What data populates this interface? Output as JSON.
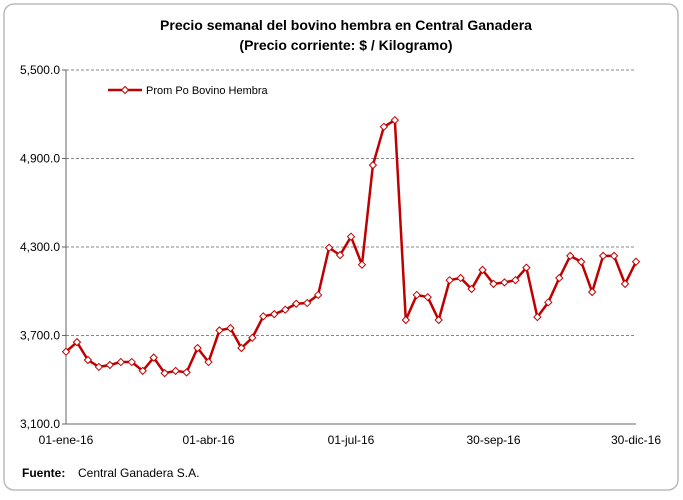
{
  "chart_data": {
    "type": "line",
    "title": "Precio semanal del bovino  hembra en Central Ganadera",
    "subtitle": "(Precio corriente: $ / Kilogramo)",
    "categories": [
      "01-ene-16",
      null,
      null,
      null,
      null,
      null,
      null,
      null,
      null,
      null,
      null,
      null,
      null,
      "01-abr-16",
      null,
      null,
      null,
      null,
      null,
      null,
      null,
      null,
      null,
      null,
      null,
      null,
      "01-jul-16",
      null,
      null,
      null,
      null,
      null,
      null,
      null,
      null,
      null,
      null,
      null,
      null,
      "30-sep-16",
      null,
      null,
      null,
      null,
      null,
      null,
      null,
      null,
      null,
      null,
      null,
      null,
      "30-dic-16"
    ],
    "series": [
      {
        "name": "Prom Po Bovino Hembra",
        "color": "#c00000",
        "values": [
          3590,
          3655,
          3534,
          3487,
          3500,
          3520,
          3520,
          3460,
          3550,
          3445,
          3460,
          3450,
          3615,
          3520,
          3735,
          3750,
          3615,
          3685,
          3830,
          3845,
          3875,
          3915,
          3920,
          3975,
          4295,
          4245,
          4370,
          4180,
          4855,
          5115,
          5160,
          3805,
          3975,
          3960,
          3805,
          4075,
          4090,
          4015,
          4145,
          4050,
          4060,
          4075,
          4160,
          3825,
          3925,
          4090,
          4240,
          4200,
          3995,
          4240,
          4240,
          4050,
          4200
        ]
      }
    ],
    "ylim": [
      3100,
      5500
    ],
    "yticks": [
      {
        "value": 3100,
        "label": "3,100.0"
      },
      {
        "value": 3700,
        "label": "3,700.0"
      },
      {
        "value": 4300,
        "label": "4,300.0"
      },
      {
        "value": 4900,
        "label": "4,900.0"
      },
      {
        "value": 5500,
        "label": "5,500.0"
      }
    ],
    "grid": true,
    "legend": "top-left"
  },
  "source": {
    "label": "Fuente:",
    "text": "Central Ganadera S.A."
  }
}
